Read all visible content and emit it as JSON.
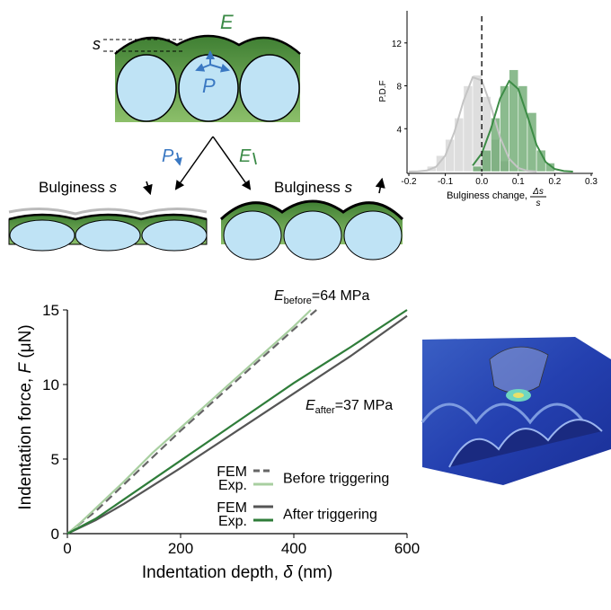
{
  "diagram": {
    "bulge_symbol": "s",
    "modulus_symbol": "E",
    "pressure_symbol": "P",
    "left_trigger": "P",
    "right_trigger": "E",
    "left_result": {
      "text": "Bulginess",
      "symbol": "s"
    },
    "right_result": {
      "text": "Bulginess",
      "symbol": "s"
    }
  },
  "chart_data": [
    {
      "type": "histogram",
      "ylabel": "P.D.F",
      "xlabel": {
        "text": "Bulginess change,",
        "numerator": "Δs",
        "denominator": "s"
      },
      "xlim": [
        -0.2,
        0.3
      ],
      "ylim": [
        0,
        15
      ],
      "xticks": [
        -0.2,
        -0.1,
        {
          "value": 0,
          "label": "0.0"
        },
        0.1,
        0.2,
        0.3
      ],
      "yticks": [
        4,
        8,
        12
      ],
      "bins": [
        -0.15,
        -0.125,
        -0.1,
        -0.075,
        -0.05,
        -0.025,
        0,
        0.025,
        0.05,
        0.075,
        0.1,
        0.125,
        0.15,
        0.175,
        0.2
      ],
      "series": [
        {
          "color": "#d6d6d6",
          "values": [
            0.5,
            1.5,
            3,
            5,
            8,
            9,
            7,
            3,
            1,
            0,
            0,
            0,
            0,
            0
          ]
        },
        {
          "color": "#5a9e5e",
          "values": [
            0,
            0,
            0,
            0,
            0,
            0.5,
            2,
            5,
            8,
            9.5,
            8,
            5.5,
            2,
            0.8
          ]
        }
      ],
      "curves": [
        {
          "color": "#c4c4c4",
          "x": [
            -0.2,
            -0.175,
            -0.15,
            -0.125,
            -0.1,
            -0.075,
            -0.05,
            -0.025,
            0,
            0.025,
            0.05,
            0.075,
            0.1,
            0.125,
            0.15
          ],
          "values": [
            0,
            0.02,
            0.1,
            0.46,
            1.5,
            3.7,
            6.6,
            8.8,
            8.5,
            6.1,
            3.2,
            1.2,
            0.34,
            0.07,
            0.01
          ]
        },
        {
          "color": "#3d8c46",
          "x": [
            -0.025,
            0,
            0.025,
            0.05,
            0.075,
            0.1,
            0.125,
            0.15,
            0.175,
            0.2,
            0.225,
            0.25
          ],
          "values": [
            0.56,
            1.7,
            4.0,
            6.8,
            8.45,
            7.7,
            5.2,
            2.5,
            0.9,
            0.24,
            0.05,
            0
          ]
        }
      ],
      "reference_line": {
        "x": 0,
        "color": "#222222",
        "dash": true
      }
    },
    {
      "type": "line",
      "xlabel": {
        "text": "Indentation depth, ",
        "symbol": "δ",
        "unit": " (nm)"
      },
      "ylabel": {
        "text": "Indentation force, ",
        "symbol": "F",
        "unit": " (μN)"
      },
      "xlim": [
        0,
        600
      ],
      "ylim": [
        0,
        15
      ],
      "xticks": [
        0,
        200,
        400,
        600
      ],
      "yticks": [
        0,
        5,
        10,
        15
      ],
      "legend_groups": [
        {
          "label": "Before triggering"
        },
        {
          "label": "After triggering"
        }
      ],
      "series": [
        {
          "name": "FEM",
          "group": 0,
          "color": "#666666",
          "dash": true,
          "x": [
            0,
            50,
            100,
            150,
            200,
            250,
            300,
            350,
            400,
            440
          ],
          "values": [
            0,
            1.5,
            3.3,
            5.1,
            6.9,
            8.6,
            10.3,
            12,
            13.7,
            15
          ]
        },
        {
          "name": "Exp.",
          "group": 0,
          "color": "#a8cfa0",
          "dash": false,
          "x": [
            0,
            25,
            50,
            100,
            150,
            200,
            250,
            300,
            350,
            400,
            430
          ],
          "values": [
            0,
            0.8,
            1.7,
            3.5,
            5.4,
            7.1,
            8.8,
            10.5,
            12.2,
            13.9,
            15
          ]
        },
        {
          "name": "FEM",
          "group": 1,
          "color": "#555555",
          "dash": false,
          "x": [
            0,
            50,
            100,
            200,
            300,
            400,
            500,
            600
          ],
          "values": [
            0,
            0.9,
            2.0,
            4.4,
            6.9,
            9.4,
            11.9,
            14.6
          ]
        },
        {
          "name": "Exp.",
          "group": 1,
          "color": "#2f7d3a",
          "dash": false,
          "x": [
            0,
            50,
            100,
            200,
            300,
            400,
            500,
            600
          ],
          "values": [
            0,
            1.0,
            2.3,
            4.9,
            7.5,
            10.1,
            12.5,
            15
          ]
        }
      ],
      "annotations": [
        {
          "symbol": "E",
          "subscript": "before",
          "text": "=64 MPa"
        },
        {
          "symbol": "E",
          "subscript": "after",
          "text": "=37 MPa"
        }
      ]
    }
  ]
}
